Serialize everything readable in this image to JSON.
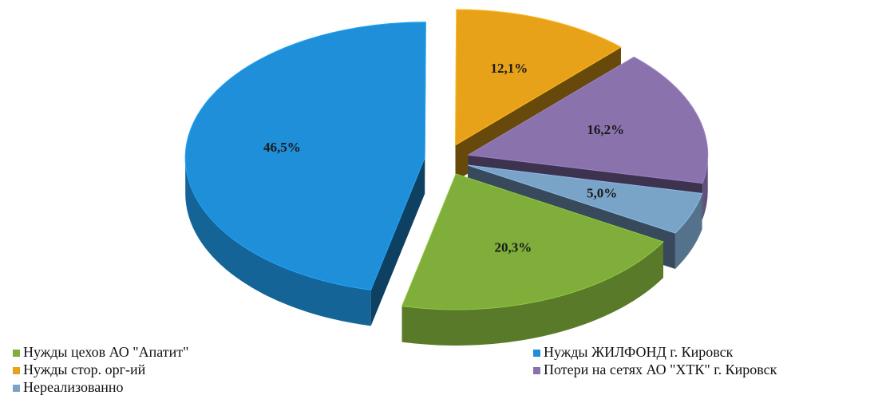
{
  "chart_data": {
    "type": "pie",
    "categories": [
      "Нужды цехов АО \"Апатит\"",
      "Нужды ЖИЛФОНД г. Кировск",
      "Нужды стор. орг-ий",
      "Потери на сетях АО \"ХТК\"  г. Кировск",
      "Нереализованно"
    ],
    "values": [
      20.3,
      46.5,
      12.1,
      16.2,
      5.0
    ],
    "value_labels": [
      "20,3%",
      "46,5%",
      "12,1%",
      "16,2%",
      "5,0%"
    ],
    "colors": [
      "#7fae3a",
      "#1e8fd8",
      "#e8a21a",
      "#8a72ad",
      "#7aa3c8"
    ],
    "legend": "bottom"
  }
}
